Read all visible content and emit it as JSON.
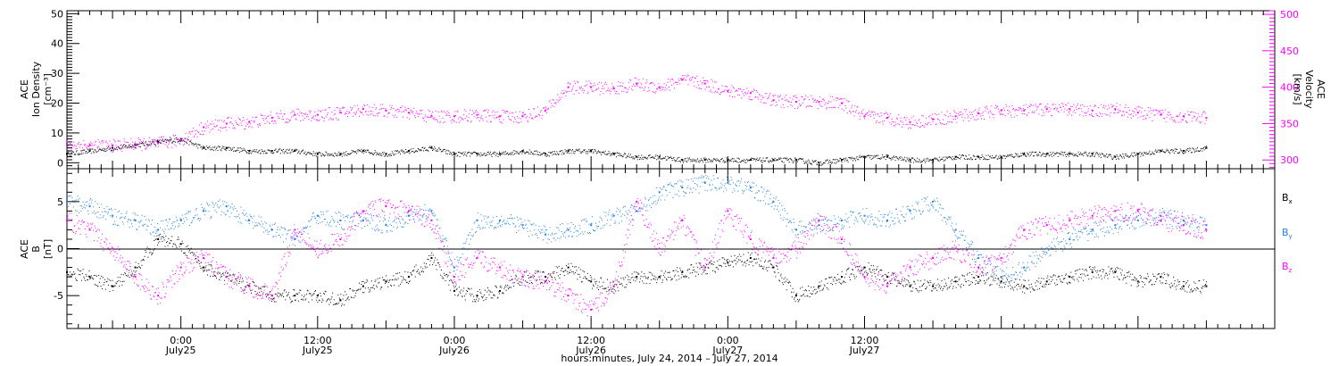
{
  "chart_data": [
    {
      "type": "scatter",
      "panel": "plasma",
      "ylabel_left": [
        "ACE",
        "Ion Density",
        "[cm⁻³]"
      ],
      "ylabel_right": [
        "ACE",
        "Velocity",
        "[km/s]"
      ],
      "ylim_left": [
        -2,
        51
      ],
      "ylim_right": [
        288,
        505
      ],
      "yticks_left": [
        0,
        10,
        20,
        30,
        40,
        50
      ],
      "yticks_right": [
        300,
        350,
        400,
        450,
        500
      ],
      "xlim_hours": [
        -10,
        96
      ],
      "series": [
        {
          "color": "#000000",
          "axis": "left",
          "x": [
            -10,
            -8,
            -6,
            -4,
            -2,
            0,
            2,
            4,
            6,
            8,
            10,
            12,
            14,
            16,
            18,
            20,
            22,
            24,
            26,
            28,
            30,
            32,
            34,
            36,
            38,
            40,
            42,
            44,
            46,
            48,
            50,
            52,
            54,
            56,
            58,
            60,
            62,
            64,
            66,
            68,
            70,
            72,
            74,
            76,
            78,
            80,
            82,
            84,
            86,
            88,
            90
          ],
          "y": [
            3,
            4,
            5,
            6,
            7,
            8,
            5,
            5,
            4,
            4,
            4,
            3,
            3,
            4,
            3,
            4,
            5,
            3,
            3,
            3,
            4,
            3,
            4,
            4,
            3,
            2,
            2,
            1,
            1,
            1,
            1,
            1,
            1,
            0,
            1,
            2,
            2,
            1,
            1,
            2,
            2,
            2,
            3,
            3,
            3,
            3,
            2,
            3,
            4,
            4,
            5
          ]
        },
        {
          "color": "#ff00ff",
          "axis": "right",
          "x": [
            -10,
            -8,
            -6,
            -4,
            -2,
            0,
            2,
            4,
            6,
            8,
            10,
            12,
            14,
            16,
            18,
            20,
            22,
            24,
            26,
            28,
            30,
            32,
            34,
            36,
            38,
            40,
            42,
            44,
            46,
            48,
            50,
            52,
            54,
            56,
            58,
            60,
            62,
            64,
            66,
            68,
            70,
            72,
            74,
            76,
            78,
            80,
            82,
            84,
            86,
            88,
            90
          ],
          "y": [
            322,
            320,
            320,
            322,
            323,
            328,
            345,
            350,
            352,
            358,
            362,
            362,
            365,
            370,
            368,
            365,
            360,
            360,
            362,
            360,
            360,
            368,
            400,
            400,
            398,
            405,
            400,
            410,
            405,
            395,
            392,
            382,
            380,
            380,
            378,
            360,
            358,
            352,
            356,
            360,
            364,
            368,
            368,
            370,
            370,
            368,
            370,
            365,
            362,
            360,
            358
          ]
        }
      ]
    },
    {
      "type": "scatter",
      "panel": "magnetic-field",
      "ylabel_left": [
        "ACE",
        "B",
        "[nT]"
      ],
      "ylim": [
        -8.5,
        8.5
      ],
      "yticks": [
        -5,
        0,
        5
      ],
      "xlim_hours": [
        -10,
        96
      ],
      "legend": [
        "Bx",
        "By",
        "Bz"
      ],
      "legend_placement": "right",
      "series": [
        {
          "name": "Bx",
          "color": "#000000",
          "x": [
            -10,
            -8,
            -6,
            -4,
            -2,
            0,
            2,
            4,
            6,
            8,
            10,
            12,
            14,
            16,
            18,
            20,
            22,
            24,
            26,
            28,
            30,
            32,
            34,
            36,
            38,
            40,
            42,
            44,
            46,
            48,
            50,
            52,
            54,
            56,
            58,
            60,
            62,
            64,
            66,
            68,
            70,
            72,
            74,
            76,
            78,
            80,
            82,
            84,
            86,
            88,
            90
          ],
          "y": [
            -2.5,
            -3,
            -4,
            -2,
            1,
            0.5,
            -2,
            -3,
            -4,
            -5,
            -5,
            -5,
            -5.5,
            -4,
            -3.5,
            -3,
            -1,
            -4.5,
            -5,
            -4.5,
            -3,
            -3,
            -2,
            -3.5,
            -4,
            -3,
            -3,
            -2.5,
            -2,
            -1.5,
            -1,
            -2,
            -5,
            -4,
            -3,
            -2,
            -3,
            -4,
            -4,
            -3.5,
            -3,
            -3.5,
            -4,
            -3.5,
            -3,
            -2.5,
            -2.5,
            -3.5,
            -3,
            -4,
            -4
          ]
        },
        {
          "name": "By",
          "color": "#1e7fdc",
          "x": [
            -10,
            -8,
            -6,
            -4,
            -2,
            0,
            2,
            4,
            6,
            8,
            10,
            12,
            14,
            16,
            18,
            20,
            22,
            24,
            26,
            28,
            30,
            32,
            34,
            36,
            38,
            40,
            42,
            44,
            46,
            48,
            50,
            52,
            54,
            56,
            58,
            60,
            62,
            64,
            66,
            68,
            70,
            72,
            74,
            76,
            78,
            80,
            82,
            84,
            86,
            88,
            90
          ],
          "y": [
            5,
            4.5,
            3.5,
            3,
            2,
            3,
            4,
            4.5,
            3,
            2,
            1,
            3.5,
            3,
            3,
            2.5,
            3.5,
            4,
            -2,
            3,
            3,
            2.5,
            1.5,
            2,
            2.5,
            3.5,
            4,
            6,
            6.5,
            7,
            7,
            6.5,
            5,
            2,
            2.5,
            3,
            3.5,
            3,
            4,
            5,
            2,
            -1,
            -3,
            -2,
            0,
            1,
            2,
            2.5,
            3,
            3.5,
            3,
            2.5
          ]
        },
        {
          "name": "Bz",
          "color": "#ff00ff",
          "x": [
            -10,
            -8,
            -6,
            -4,
            -2,
            0,
            2,
            4,
            6,
            8,
            10,
            12,
            14,
            16,
            18,
            20,
            22,
            24,
            26,
            28,
            30,
            32,
            34,
            36,
            38,
            40,
            42,
            44,
            46,
            48,
            50,
            52,
            54,
            56,
            58,
            60,
            62,
            64,
            66,
            68,
            70,
            72,
            74,
            76,
            78,
            80,
            82,
            84,
            86,
            88,
            90
          ],
          "y": [
            3,
            2,
            0,
            -3,
            -5,
            -2,
            -1,
            -3,
            -4,
            -5,
            2,
            0,
            1,
            4,
            4.5,
            4,
            3,
            -3,
            -1,
            -2,
            -3,
            -3.5,
            -5,
            -6.5,
            -4,
            5,
            0,
            3,
            -2,
            4,
            1,
            -1,
            0,
            3,
            1,
            -3,
            -4,
            -2,
            -1,
            0,
            -2,
            -1,
            2,
            2.5,
            3,
            3.5,
            4,
            4,
            3,
            2.5,
            2
          ]
        }
      ]
    },
    {
      "type": "time-axis",
      "xlabel": "hours:minutes, July 24, 2014 – July 27, 2014",
      "xlim_hours": [
        -10,
        96
      ],
      "major_ticks": [
        {
          "hour": 0,
          "time": "0:00",
          "date": "July25"
        },
        {
          "hour": 12,
          "time": "12:00",
          "date": "July25"
        },
        {
          "hour": 24,
          "time": "0:00",
          "date": "July26"
        },
        {
          "hour": 36,
          "time": "12:00",
          "date": "July26"
        },
        {
          "hour": 48,
          "time": "0:00",
          "date": "July27"
        },
        {
          "hour": 60,
          "time": "12:00",
          "date": "July27"
        }
      ]
    }
  ],
  "colors": {
    "black": "#000000",
    "magenta": "#ff00ff",
    "blue": "#1e7fdc"
  }
}
